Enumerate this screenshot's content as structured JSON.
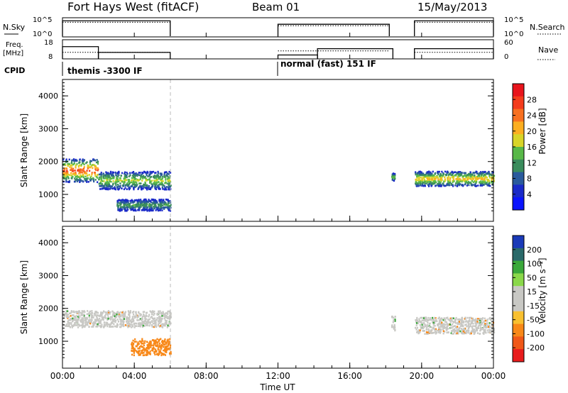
{
  "header": {
    "station": "Fort Hays West (fitACF)",
    "beam": "Beam 01",
    "date": "15/May/2013"
  },
  "panels": {
    "nsky": {
      "label": "N.Sky",
      "ticks": [
        "10^5",
        "10^0"
      ],
      "right_ticks": [
        "10^5",
        "10^0"
      ],
      "right_label": "N.Search"
    },
    "freq": {
      "label_top": "Freq.",
      "label_bottom": "[MHz]",
      "ticks": [
        "18",
        "8"
      ],
      "right_ticks": [
        "60",
        "0"
      ],
      "right_label": "Nave"
    },
    "cpid": {
      "label": "CPID",
      "modes": [
        {
          "name": "themis -3300 IF",
          "start_h": 0
        },
        {
          "name": "normal (fast) 151 IF",
          "start_h": 12
        }
      ]
    }
  },
  "power_panel": {
    "ylabel": "Slant Range [km]",
    "yticks": [
      "4000",
      "3000",
      "2000",
      "1000"
    ],
    "colorbar_label": "Power [dB]",
    "colorbar_ticks": [
      "28",
      "24",
      "20",
      "16",
      "12",
      "8",
      "4"
    ],
    "colors": [
      "#e8141c",
      "#f43c1c",
      "#f87020",
      "#fcae20",
      "#d8d428",
      "#58b848",
      "#3a8c5c",
      "#2a5a9c",
      "#1a2ac8",
      "#0a14ff"
    ]
  },
  "velocity_panel": {
    "ylabel": "Slant Range [km]",
    "yticks": [
      "4000",
      "3000",
      "2000",
      "1000"
    ],
    "colorbar_label": "Velocity [m s⁻¹]",
    "colorbar_ticks": [
      "200",
      "100",
      "50",
      "15",
      "-15",
      "-50",
      "-100",
      "-200"
    ],
    "colors": [
      "#1a3ab8",
      "#2a6a6a",
      "#3aa83a",
      "#8ad84a",
      "#c8c8c4",
      "#c8c8c4",
      "#f8c030",
      "#f88818",
      "#f05818",
      "#e81c1c"
    ]
  },
  "x_axis": {
    "label": "Time UT",
    "ticks": [
      "00:00",
      "04:00",
      "08:00",
      "12:00",
      "16:00",
      "20:00",
      "00:00"
    ]
  },
  "chart_data": {
    "type": "heatmap",
    "title": "Fort Hays West (fitACF)",
    "xlabel": "Time UT",
    "ylabel": "Slant Range [km]",
    "xlim": [
      0,
      24
    ],
    "ylim": [
      180,
      4500
    ],
    "x_unit": "hours UT",
    "data_gaps_hours": [
      [
        6.0,
        18.0
      ],
      [
        18.5,
        19.6
      ]
    ],
    "nsky_segments": [
      [
        0,
        6.0,
        4.5
      ],
      [
        12.0,
        18.2,
        3.5
      ],
      [
        19.6,
        24,
        4.5
      ]
    ],
    "freq_segments_mhz": [
      [
        0,
        2.0,
        15.2
      ],
      [
        2.0,
        6.0,
        11.8
      ],
      [
        12.0,
        14.2,
        10.3
      ],
      [
        14.2,
        18.4,
        14.0
      ],
      [
        19.6,
        24,
        14.0
      ]
    ],
    "nave_segments": [
      [
        0,
        6.0,
        23
      ],
      [
        12.0,
        18.2,
        28
      ],
      [
        19.6,
        24,
        23
      ]
    ],
    "power_bands": [
      {
        "start_h": 0.0,
        "end_h": 2.0,
        "center_range_km": 1750,
        "width_km": 700,
        "peak_db": 26
      },
      {
        "start_h": 2.0,
        "end_h": 6.0,
        "center_range_km": 1450,
        "width_km": 550,
        "peak_db": 16
      },
      {
        "start_h": 3.0,
        "end_h": 6.0,
        "center_range_km": 700,
        "width_km": 350,
        "peak_db": 12
      },
      {
        "start_h": 18.3,
        "end_h": 18.5,
        "center_range_km": 1550,
        "width_km": 250,
        "peak_db": 14
      },
      {
        "start_h": 19.6,
        "end_h": 24.0,
        "center_range_km": 1500,
        "width_km": 450,
        "peak_db": 20
      }
    ],
    "velocity_bands": [
      {
        "start_h": 0.0,
        "end_h": 6.0,
        "center_range_km": 1700,
        "velocity_ms": 0
      },
      {
        "start_h": 3.8,
        "end_h": 6.0,
        "center_range_km": 850,
        "velocity_ms": -80
      },
      {
        "start_h": 18.3,
        "end_h": 18.5,
        "center_range_km": 1550,
        "velocity_ms": 0
      },
      {
        "start_h": 19.6,
        "end_h": 24.0,
        "center_range_km": 1500,
        "velocity_ms": 0
      }
    ]
  }
}
